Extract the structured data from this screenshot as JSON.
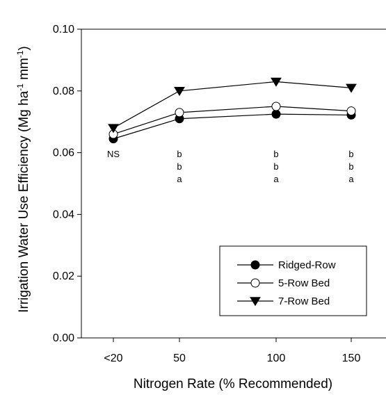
{
  "chart_data": {
    "type": "line",
    "xlabel": "Nitrogen Rate (% Recommended)",
    "ylabel": "Irrigation Water Use Efficiency (Mg ha",
    "ylabel_sup1": "-1",
    "ylabel_mid": " mm",
    "ylabel_sup2": "-1",
    "ylabel_end": ")",
    "categories": [
      "<20",
      "50",
      "100",
      "150"
    ],
    "ylim": [
      0,
      0.1
    ],
    "yticks": [
      "0.00",
      "0.02",
      "0.04",
      "0.06",
      "0.08",
      "0.10"
    ],
    "grid": false,
    "legend_position": "bottom-right",
    "series": [
      {
        "name": "Ridged-Row",
        "marker": "filled-circle",
        "values": [
          0.0645,
          0.071,
          0.0725,
          0.0722
        ]
      },
      {
        "name": "5-Row Bed",
        "marker": "open-circle",
        "values": [
          0.066,
          0.073,
          0.075,
          0.0735
        ]
      },
      {
        "name": "7-Row Bed",
        "marker": "filled-triangle-down",
        "values": [
          0.068,
          0.08,
          0.083,
          0.081
        ]
      }
    ],
    "annotations": [
      {
        "category": "<20",
        "lines": [
          "NS"
        ]
      },
      {
        "category": "50",
        "lines": [
          "b",
          "b",
          "a"
        ]
      },
      {
        "category": "100",
        "lines": [
          "b",
          "b",
          "a"
        ]
      },
      {
        "category": "150",
        "lines": [
          "b",
          "b",
          "a"
        ]
      }
    ]
  }
}
